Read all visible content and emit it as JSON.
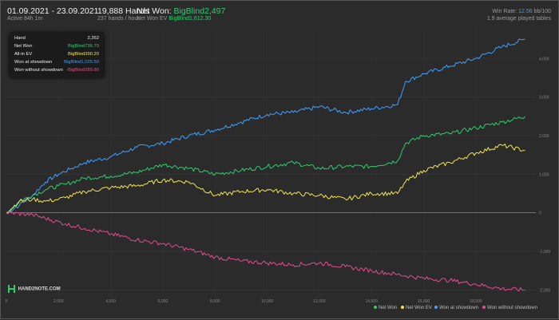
{
  "header": {
    "date_range": "01.09.2021 - 23.09.2021",
    "active": "Active 84h 1m",
    "hands": "19,888 Hands",
    "hands_per_hour": "237 hands / hour",
    "net_won_label": "Net Won:",
    "net_won_value": "BigBlind2,497",
    "net_won_ev_label": "Net Won  EV",
    "net_won_ev_value": "BigBlind1,612.30",
    "win_rate_label": "Win Rate:",
    "win_rate_value": "12.56",
    "win_rate_unit": "bb/100",
    "tables": "1.9 average played tables"
  },
  "tooltip": {
    "rows": [
      {
        "label": "Hand",
        "value": "2,262",
        "color": "#eeeeee"
      },
      {
        "label": "Net Won",
        "value": "BigBlind736.70",
        "color": "#2ecc71"
      },
      {
        "label": "All-in EV",
        "value": "BigBlind390.20",
        "color": "#f1e64b"
      },
      {
        "label": "Won at showdown",
        "value": "BigBlind1,025.50",
        "color": "#3fa0ff"
      },
      {
        "label": "Won without showdown",
        "value": "-BigBlind289.80",
        "color": "#e64b8c"
      }
    ]
  },
  "logo": {
    "text": "HAND2NOTE.COM"
  },
  "legend": [
    {
      "label": "Net Won",
      "color": "#2ecc71"
    },
    {
      "label": "Net Won  EV",
      "color": "#f1e64b"
    },
    {
      "label": "Won at showdown",
      "color": "#3fa0ff"
    },
    {
      "label": "Won without showdown",
      "color": "#e64b8c"
    }
  ],
  "chart_data": {
    "type": "line",
    "x_ticks": [
      0,
      2000,
      4000,
      6000,
      8000,
      10000,
      12000,
      14000,
      16000,
      18000
    ],
    "x_tick_labels": [
      "0",
      "2,000",
      "4,000",
      "6,000",
      "8,000",
      "10,000",
      "12,000",
      "14,000",
      "16,000",
      "18,000"
    ],
    "y_ticks": [
      -2000,
      -1000,
      0,
      1000,
      2000,
      3000,
      4000
    ],
    "y_tick_labels": [
      "-2,000",
      "-1,000",
      "0",
      "1,000",
      "2,000",
      "3,000",
      "4,000"
    ],
    "xlim": [
      0,
      20300
    ],
    "ylim": [
      -2200,
      4750
    ],
    "grid": true,
    "legend_position": "bottom-right",
    "series": [
      {
        "name": "Won at showdown",
        "color": "#3fa0ff",
        "x": [
          0,
          500,
          1000,
          1500,
          2000,
          2500,
          3000,
          4000,
          5000,
          6000,
          7000,
          8000,
          9000,
          10000,
          11000,
          12000,
          13000,
          14000,
          15000,
          15300,
          16000,
          17000,
          18000,
          19000,
          19888
        ],
        "y": [
          0,
          200,
          450,
          800,
          1000,
          1150,
          1300,
          1450,
          1700,
          1800,
          2000,
          2150,
          2350,
          2550,
          2600,
          2750,
          2600,
          2700,
          2800,
          3400,
          3600,
          3800,
          4000,
          4300,
          4500
        ]
      },
      {
        "name": "Net Won",
        "color": "#2ecc71",
        "x": [
          0,
          500,
          1000,
          1500,
          2000,
          2262,
          3000,
          4000,
          5000,
          6000,
          7000,
          8000,
          9000,
          10000,
          11000,
          12000,
          13000,
          14000,
          15000,
          15300,
          16000,
          17000,
          18000,
          19000,
          19888
        ],
        "y": [
          0,
          300,
          450,
          600,
          700,
          737,
          900,
          950,
          1050,
          1250,
          1150,
          1000,
          1100,
          1200,
          1300,
          1150,
          1200,
          1200,
          1350,
          1800,
          2000,
          2050,
          2200,
          2350,
          2497
        ]
      },
      {
        "name": "Net Won  EV",
        "color": "#f1e64b",
        "x": [
          0,
          500,
          1000,
          1500,
          2000,
          2262,
          3000,
          4000,
          5000,
          6000,
          7000,
          8000,
          9000,
          10000,
          11000,
          12000,
          13000,
          14000,
          15000,
          15300,
          16000,
          17000,
          18000,
          19000,
          19888
        ],
        "y": [
          0,
          300,
          350,
          300,
          350,
          390,
          550,
          650,
          700,
          850,
          800,
          450,
          550,
          600,
          500,
          450,
          350,
          500,
          500,
          800,
          1100,
          1300,
          1550,
          1750,
          1612
        ]
      },
      {
        "name": "Won without showdown",
        "color": "#e64b8c",
        "x": [
          0,
          1000,
          2262,
          3000,
          4000,
          5000,
          6000,
          7000,
          8000,
          9000,
          10000,
          11000,
          12000,
          13000,
          14000,
          15000,
          16000,
          17000,
          18000,
          19000,
          19888
        ],
        "y": [
          0,
          -50,
          -290,
          -400,
          -550,
          -700,
          -800,
          -950,
          -1150,
          -1250,
          -1300,
          -1350,
          -1300,
          -1400,
          -1500,
          -1600,
          -1700,
          -1750,
          -1850,
          -1970,
          -2000
        ]
      }
    ]
  }
}
